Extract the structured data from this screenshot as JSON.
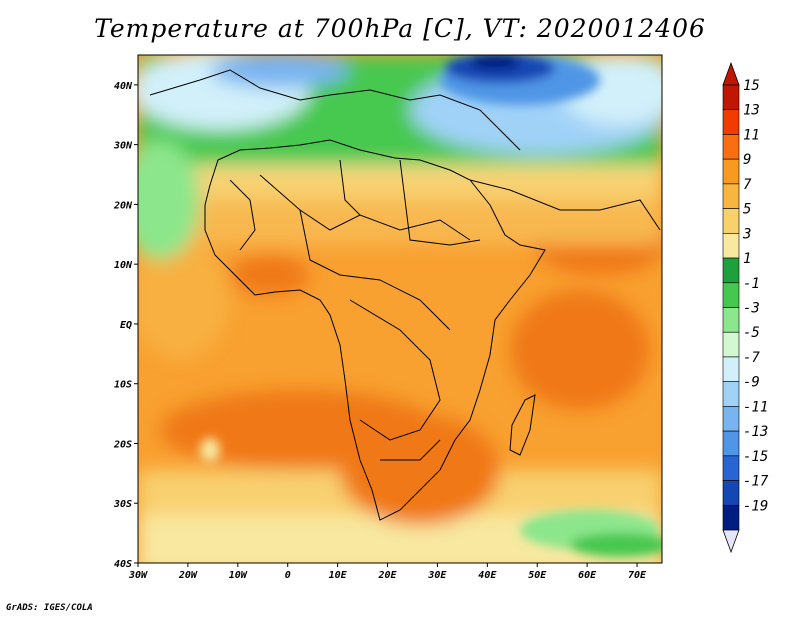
{
  "title": "Temperature at 700hPa [C], VT: 2020012406",
  "footer": "GrADS: IGES/COLA",
  "map": {
    "lat_labels": [
      "40N",
      "30N",
      "20N",
      "10N",
      "EQ",
      "10S",
      "20S",
      "30S",
      "40S"
    ],
    "lon_labels": [
      "30W",
      "20W",
      "10W",
      "0",
      "10E",
      "20E",
      "30E",
      "40E",
      "50E",
      "60E",
      "70E"
    ],
    "lat_range": [
      -40,
      45
    ],
    "lon_range": [
      -30,
      75
    ]
  },
  "colorbar": {
    "labels": [
      "15",
      "13",
      "11",
      "9",
      "7",
      "5",
      "3",
      "1",
      "-1",
      "-3",
      "-5",
      "-7",
      "-9",
      "-11",
      "-13",
      "-15",
      "-17",
      "-19"
    ],
    "colors": [
      "#c01800",
      "#f03c00",
      "#f86e10",
      "#f89a20",
      "#f8b640",
      "#f8d06c",
      "#f8e8a0",
      "#1ea03c",
      "#46c850",
      "#8ce68c",
      "#d2f8d2",
      "#d2f0fa",
      "#a0d2f8",
      "#78b4f0",
      "#5096e6",
      "#2864d2",
      "#1446b4",
      "#001e82"
    ],
    "top_arrow_color": "#c01800",
    "bottom_arrow_color": "#e6e6fa"
  }
}
